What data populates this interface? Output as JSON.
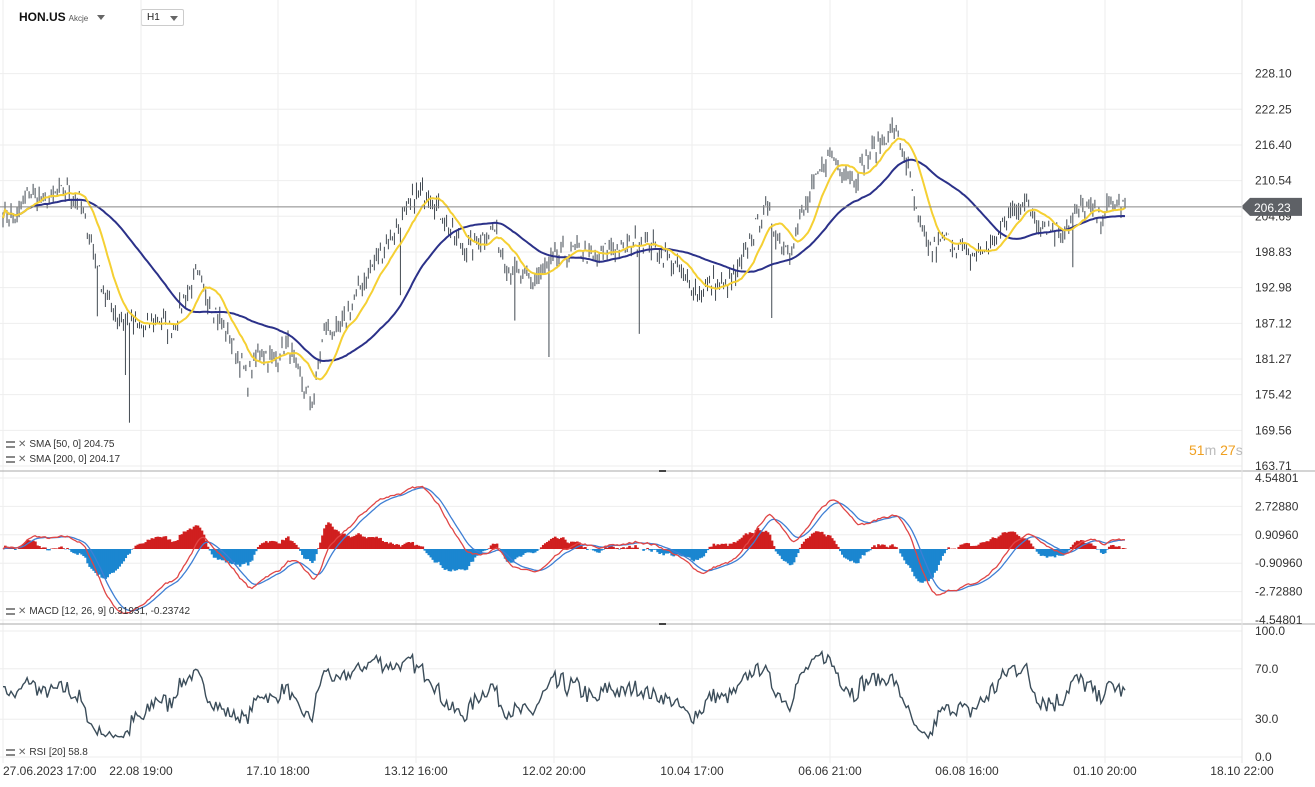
{
  "header": {
    "symbol": "HON.US",
    "symbol_sub": "Akcje",
    "timeframe": "H1"
  },
  "colors": {
    "price": "#424a52",
    "sma50": "#f5d033",
    "sma200": "#2b3189",
    "macd_line": "#e04646",
    "signal_line": "#3f7fd4",
    "hist_pos": "#d01f1f",
    "hist_neg": "#1b86d0",
    "rsi": "#3b4d5a",
    "last_label_bg": "#5e6166"
  },
  "chart_data": [
    {
      "type": "candlestick",
      "title": "HON.US",
      "y_ticks": [
        "228.10",
        "222.25",
        "216.40",
        "210.54",
        "204.69",
        "198.83",
        "192.98",
        "187.12",
        "181.27",
        "175.42",
        "169.56",
        "163.71"
      ],
      "ylim": [
        163.71,
        233.95
      ],
      "last_price": "206.23",
      "x_ticks": [
        "27.06.2023  17:00",
        "22.08  19:00",
        "17.10  18:00",
        "13.12  16:00",
        "12.02  20:00",
        "10.04  17:00",
        "06.06  21:00",
        "06.08  16:00",
        "01.10  20:00",
        "18.10  22:00"
      ],
      "close_approx": [
        206,
        204,
        209,
        207,
        208,
        209,
        207,
        199,
        191,
        188,
        187,
        186,
        188,
        186,
        191,
        195,
        191,
        187,
        183,
        178,
        183,
        181,
        184,
        178,
        174,
        187,
        185,
        190,
        194,
        198,
        201,
        204,
        208,
        209,
        205,
        201,
        199,
        201,
        203,
        197,
        195,
        194,
        196,
        198,
        199,
        199,
        197,
        200,
        199,
        201,
        200,
        199,
        197,
        194,
        192,
        194,
        193,
        195,
        201,
        206,
        202,
        199,
        205,
        210,
        215,
        213,
        211,
        214,
        217,
        219,
        214,
        203,
        199,
        201,
        200,
        198,
        199,
        201,
        205,
        207,
        205,
        203,
        202,
        205,
        206,
        204,
        207,
        206
      ],
      "series": [
        {
          "name": "SMA [50,  0]",
          "value": "204.75"
        },
        {
          "name": "SMA [200,  0]",
          "value": "204.17"
        }
      ],
      "countdown": {
        "min": "51",
        "min_unit": "m",
        "sec": "27",
        "sec_unit": "s"
      }
    },
    {
      "type": "line",
      "title": "MACD [12, 26, 9]",
      "values_label": "0.31931,  -0.23742",
      "y_ticks": [
        "4.54801",
        "2.72880",
        "0.90960",
        "-0.90960",
        "-2.72880",
        "-4.54801"
      ],
      "ylim": [
        -4.54801,
        4.54801
      ]
    },
    {
      "type": "line",
      "title": "RSI [20]",
      "value": "58.8",
      "y_ticks": [
        "100.0",
        "70.0",
        "30.0",
        "0.0"
      ],
      "ylim": [
        0,
        100
      ]
    }
  ],
  "legend": {
    "sma50": "SMA [50,  0] 204.75",
    "sma200": "SMA [200,  0] 204.17",
    "macd": "MACD [12, 26, 9] 0.31931,  -0.23742",
    "rsi": "RSI [20]  58.8"
  }
}
